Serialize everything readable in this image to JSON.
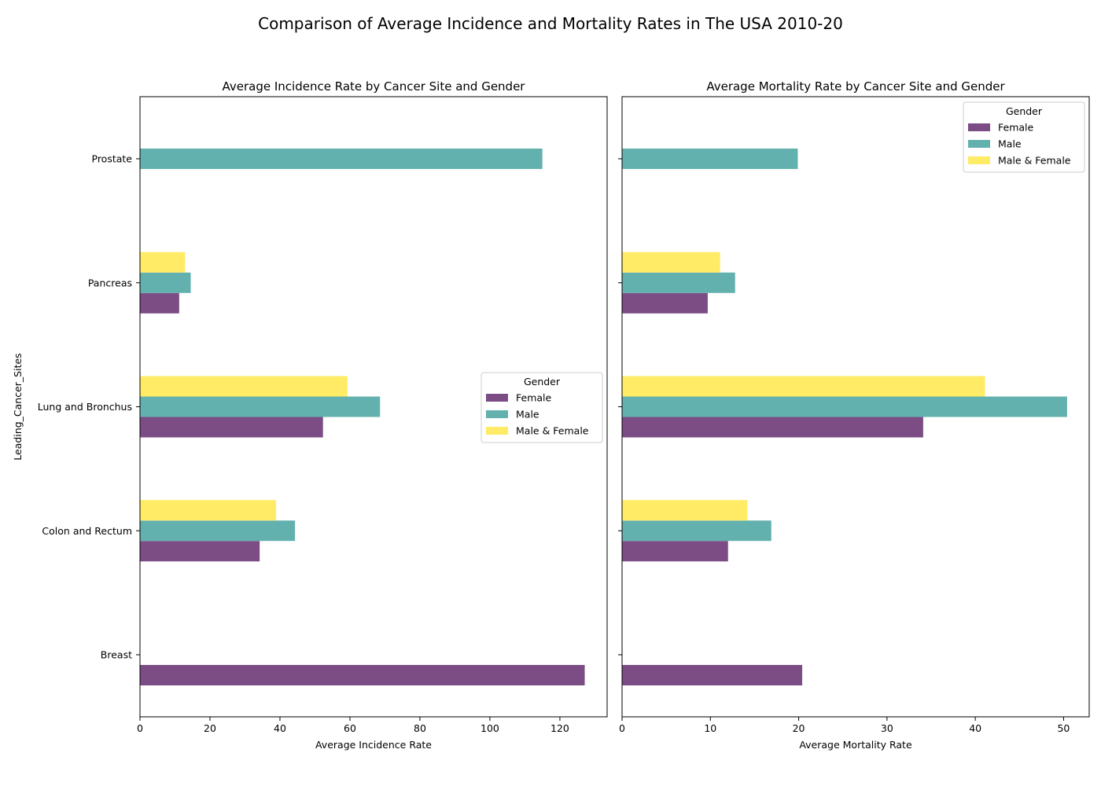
{
  "figure": {
    "suptitle": "Comparison of Average Incidence and Mortality Rates in The USA 2010-20"
  },
  "chart_data": [
    {
      "type": "bar",
      "orientation": "horizontal",
      "title": "Average Incidence  Rate by Cancer Site and Gender",
      "xlabel": "Average Incidence  Rate",
      "ylabel": "Leading_Cancer_Sites",
      "categories": [
        "Breast",
        "Colon and Rectum",
        "Lung and Bronchus",
        "Pancreas",
        "Prostate"
      ],
      "xlim": [
        0,
        133.5
      ],
      "xticks": [
        0,
        20,
        40,
        60,
        80,
        100,
        120
      ],
      "grid": false,
      "legend": {
        "title": "Gender",
        "placement": "center-right"
      },
      "series": [
        {
          "name": "Female",
          "color": "#7b4d84",
          "values": [
            127.1,
            34.2,
            52.3,
            11.2,
            null
          ]
        },
        {
          "name": "Male",
          "color": "#63b1ae",
          "values": [
            null,
            44.3,
            68.6,
            14.5,
            115.0
          ]
        },
        {
          "name": "Male & Female",
          "color": "#ffeb66",
          "values": [
            null,
            38.9,
            59.3,
            12.9,
            null
          ]
        }
      ]
    },
    {
      "type": "bar",
      "orientation": "horizontal",
      "title": "Average Mortality Rate by Cancer Site and Gender",
      "xlabel": "Average Mortality Rate",
      "ylabel": "",
      "categories": [
        "Breast",
        "Colon and Rectum",
        "Lung and Bronchus",
        "Pancreas",
        "Prostate"
      ],
      "xlim": [
        0,
        52.9
      ],
      "xticks": [
        0,
        10,
        20,
        30,
        40,
        50
      ],
      "grid": false,
      "legend": {
        "title": "Gender",
        "placement": "top-right"
      },
      "series": [
        {
          "name": "Female",
          "color": "#7b4d84",
          "values": [
            20.4,
            12.0,
            34.1,
            9.7,
            null
          ]
        },
        {
          "name": "Male",
          "color": "#63b1ae",
          "values": [
            null,
            16.9,
            50.4,
            12.8,
            19.9
          ]
        },
        {
          "name": "Male & Female",
          "color": "#ffeb66",
          "values": [
            null,
            14.2,
            41.1,
            11.1,
            null
          ]
        }
      ]
    }
  ]
}
